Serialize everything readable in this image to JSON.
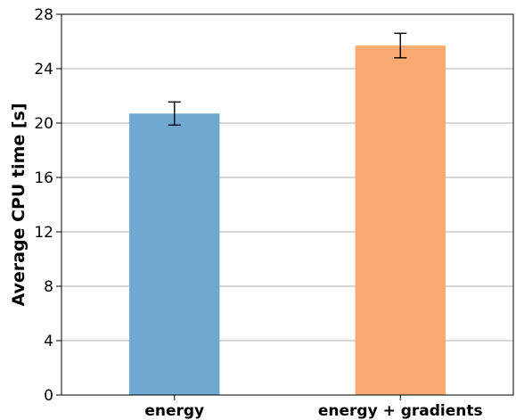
{
  "chart_data": {
    "type": "bar",
    "title": "",
    "xlabel": "",
    "ylabel": "Average CPU time [s]",
    "categories": [
      "energy",
      "energy + gradients"
    ],
    "values": [
      20.7,
      25.7
    ],
    "error": [
      0.85,
      0.9
    ],
    "ylim": [
      0,
      28
    ],
    "yticks": [
      0,
      4,
      8,
      12,
      16,
      20,
      24,
      28
    ],
    "grid": "horizontal",
    "colors": [
      "#6fa8d1",
      "#f9aa72"
    ]
  }
}
